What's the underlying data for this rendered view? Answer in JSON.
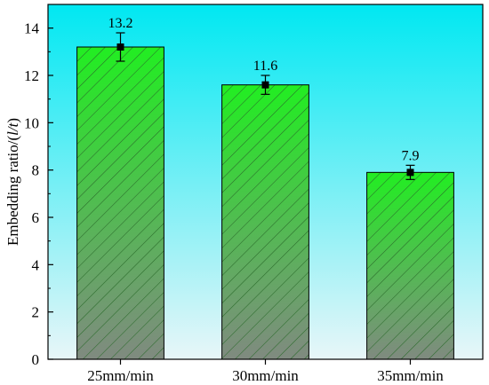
{
  "chart_data": {
    "type": "bar",
    "categories": [
      "25mm/min",
      "30mm/min",
      "35mm/min"
    ],
    "values": [
      13.2,
      11.6,
      7.9
    ],
    "error": [
      0.6,
      0.4,
      0.3
    ],
    "data_labels": [
      "13.2",
      "11.6",
      "7.9"
    ],
    "xlabel": "",
    "ylabel_prefix": "Embedding ratio/(",
    "ylabel_italic": "l/t",
    "ylabel_suffix": ")",
    "ylim": [
      0,
      15
    ],
    "yticks": [
      0,
      2,
      4,
      6,
      8,
      10,
      12,
      14
    ],
    "grid": false,
    "colors": {
      "background_top": "#00e8f2",
      "background_bottom": "#e8f6f8",
      "bar_top": "#22ee22",
      "bar_bottom": "#808a80",
      "hatch": "#2a6a2a",
      "marker": "#000000"
    }
  }
}
